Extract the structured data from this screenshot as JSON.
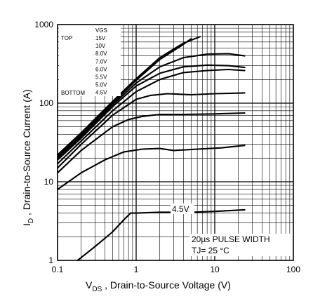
{
  "chart_data": {
    "type": "line",
    "x_scale": "log",
    "y_scale": "log",
    "xlim": [
      0.1,
      100
    ],
    "ylim": [
      1,
      1000
    ],
    "grid": true,
    "xlabel": {
      "prefix": "V",
      "sub": "DS",
      "suffix": " , Drain-to-Source Voltage (V)"
    },
    "ylabel": {
      "prefix": "I",
      "sub": "D",
      "suffix": " , Drain-to-Source Current (A)"
    },
    "x_ticks": [
      {
        "value": 0.1,
        "label": "0.1"
      },
      {
        "value": 1,
        "label": "1"
      },
      {
        "value": 10,
        "label": "10"
      },
      {
        "value": 100,
        "label": "100"
      }
    ],
    "y_ticks": [
      {
        "value": 1,
        "label": "1"
      },
      {
        "value": 10,
        "label": "10"
      },
      {
        "value": 100,
        "label": "100"
      },
      {
        "value": 1000,
        "label": "1000"
      }
    ],
    "legend": {
      "header": "VGS",
      "top_label": "TOP",
      "bottom_label": "BOTTOM",
      "entries": [
        "15V",
        "10V",
        "8.0V",
        "7.0V",
        "6.0V",
        "5.5V",
        "5.0V",
        "4.5V"
      ]
    },
    "annotations": {
      "curve_label": "4.5V",
      "pulse": "20µs PULSE WIDTH",
      "temp": "TJ= 25 °C"
    },
    "series": [
      {
        "name": "15V",
        "x": [
          0.1,
          0.2,
          0.5,
          1,
          2,
          4,
          6.5
        ],
        "y": [
          22,
          42,
          105,
          205,
          380,
          580,
          700
        ]
      },
      {
        "name": "10V",
        "x": [
          0.1,
          0.2,
          0.5,
          1,
          2,
          4,
          5
        ],
        "y": [
          21,
          40,
          100,
          195,
          360,
          560,
          660
        ]
      },
      {
        "name": "8.0V",
        "x": [
          0.1,
          0.2,
          0.5,
          1,
          2,
          4,
          8,
          15,
          24
        ],
        "y": [
          20,
          38,
          95,
          180,
          290,
          380,
          420,
          425,
          400
        ]
      },
      {
        "name": "7.0V",
        "x": [
          0.1,
          0.2,
          0.5,
          1,
          2,
          4,
          8,
          15,
          24
        ],
        "y": [
          19,
          36,
          90,
          165,
          240,
          290,
          305,
          300,
          285
        ]
      },
      {
        "name": "6.0V",
        "x": [
          0.1,
          0.2,
          0.5,
          1,
          2,
          4,
          8,
          15,
          24
        ],
        "y": [
          17,
          33,
          80,
          140,
          200,
          245,
          260,
          268,
          260
        ]
      },
      {
        "name": "5.5V",
        "x": [
          0.1,
          0.2,
          0.5,
          1,
          1.5,
          2.5,
          5,
          10,
          24
        ],
        "y": [
          15,
          30,
          70,
          112,
          125,
          132,
          128,
          132,
          135
        ]
      },
      {
        "name": "5.0V",
        "x": [
          0.1,
          0.2,
          0.5,
          0.8,
          1.2,
          2,
          4,
          10,
          24
        ],
        "y": [
          13,
          25,
          50,
          62,
          68,
          72,
          72,
          73,
          75
        ]
      },
      {
        "name": "4.5V",
        "x": [
          0.1,
          0.2,
          0.4,
          0.7,
          1.2,
          2,
          3,
          6,
          12,
          24
        ],
        "y": [
          8,
          13,
          19,
          24,
          26,
          26.5,
          25,
          26,
          27,
          29
        ]
      },
      {
        "name": "4.5V bottom",
        "x": [
          0.18,
          0.3,
          0.5,
          0.7,
          0.85,
          1,
          2,
          5,
          10,
          24
        ],
        "y": [
          1,
          1.5,
          2.3,
          3.3,
          4,
          4,
          4.1,
          4.1,
          4.2,
          4.4
        ]
      }
    ]
  }
}
